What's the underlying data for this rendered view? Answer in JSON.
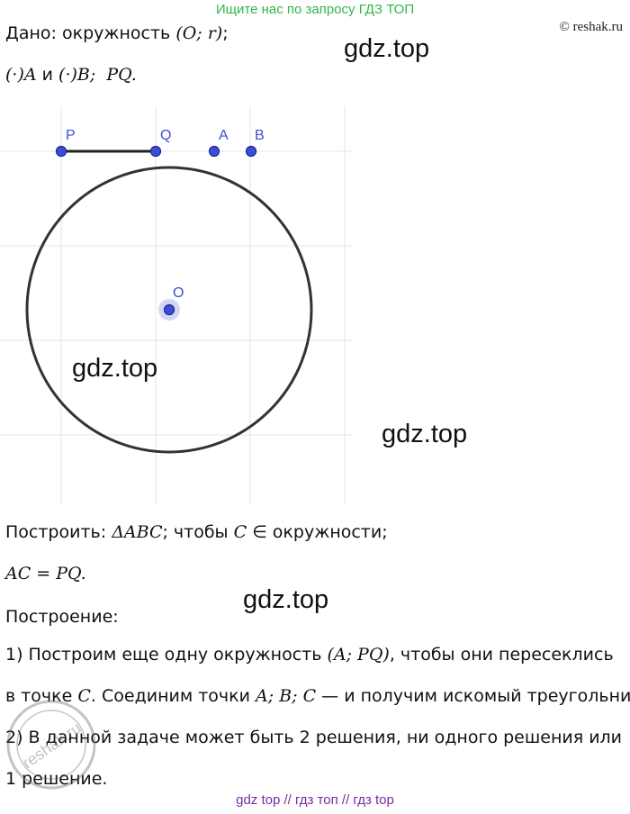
{
  "banner": "Ищите нас по запросу ГДЗ ТОП",
  "copyright": "© reshak.ru",
  "given": {
    "label": "Дано: окружность",
    "circle_math": "(O; r)",
    "line2_math_a": "(·)A",
    "line2_and": "и",
    "line2_math_b": "(·)B;",
    "line2_math_pq": "PQ."
  },
  "figure": {
    "points": {
      "P": "P",
      "Q": "Q",
      "A": "A",
      "B": "B",
      "O": "O"
    }
  },
  "watermarks": [
    "gdz.top",
    "gdz.top",
    "gdz.top",
    "gdz.top"
  ],
  "construct": {
    "label": "Построить:",
    "triangle_math": "ΔABC",
    "rest": "; чтобы",
    "c_math": "C",
    "in_circle": "∈ окружности;",
    "equation_math": "AC = PQ."
  },
  "construction_title": "Построение:",
  "steps": {
    "s1_a": "1) Построим еще одну окружность",
    "s1_math": "(A; PQ)",
    "s1_b": ", чтобы они пересеклись",
    "s2_a": "в точке",
    "s2_c": "C",
    "s2_b": ". Соединим точки",
    "s2_math": "A; B; C",
    "s2_c2": "— и получим искомый треугольник.",
    "s3": "2) В данной задаче может быть 2 решения, ни одного решения или",
    "s4": "1 решение."
  },
  "stamp_text": "reshak.ru",
  "footer": "gdz top  //  гдз топ  //  гдз top"
}
